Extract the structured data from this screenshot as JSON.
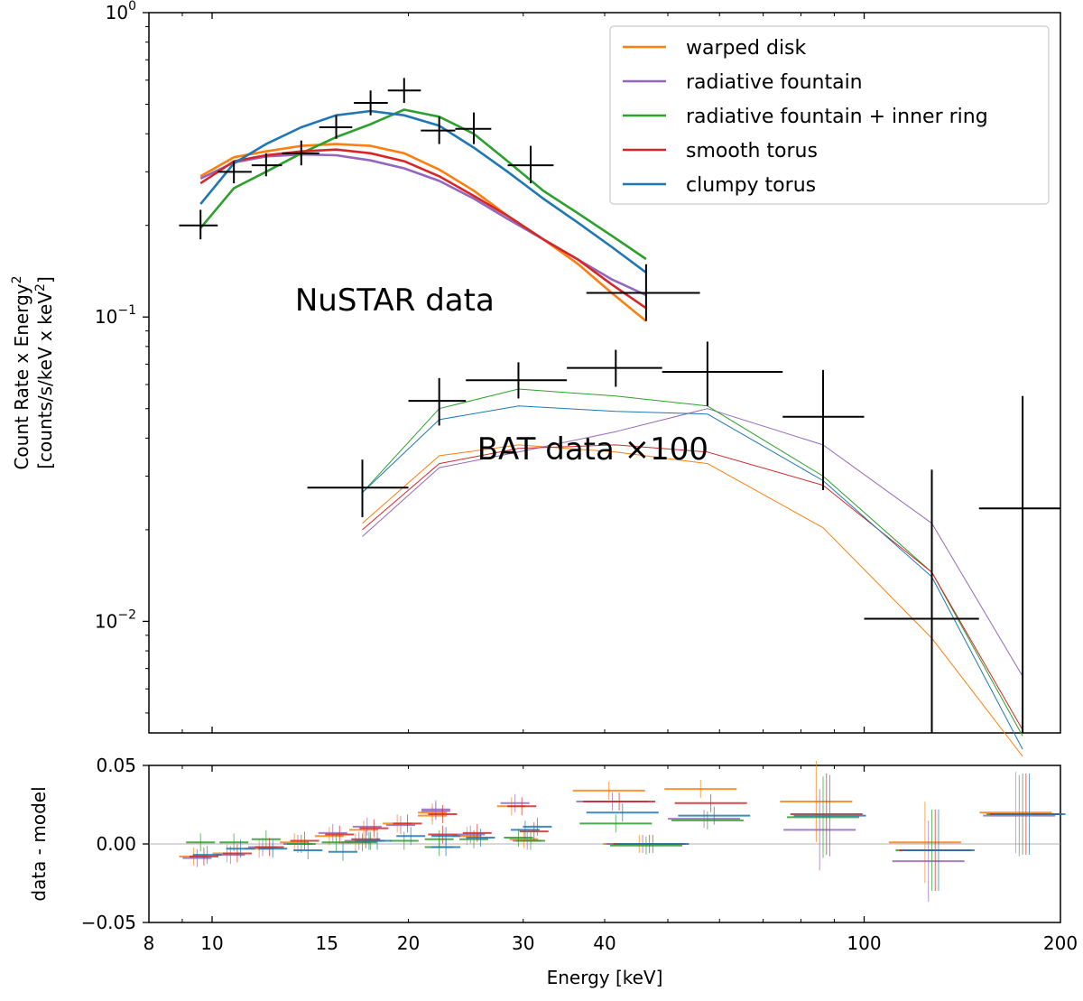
{
  "chart_data": [
    {
      "type": "line",
      "panel": "spectrum",
      "x_scale": "log",
      "y_scale": "log",
      "xlim": [
        8,
        200
      ],
      "ylim": [
        0.0043,
        1.0
      ],
      "xlabel": "Energy [keV]",
      "ylabel_line1": "Count Rate x Energy",
      "ylabel_line2": "[counts/s/keV x keV",
      "ylabel_sup": "2",
      "ytick_base": "10",
      "yticks": [
        {
          "value": 1.0,
          "exp": "0"
        },
        {
          "value": 0.1,
          "exp": "−1"
        },
        {
          "value": 0.01,
          "exp": "−2"
        }
      ],
      "legend_position": "top-right",
      "annotations": [
        {
          "text": "NuSTAR data",
          "x": 13.4,
          "y": 0.105
        },
        {
          "text": "BAT data ×100",
          "x": 25.5,
          "y": 0.034
        }
      ],
      "series": [
        {
          "name": "warped disk",
          "color": "#ff7f0e",
          "nustar": {
            "x": [
              9.6,
              10.8,
              12.1,
              13.7,
              15.5,
              17.5,
              19.7,
              22.3,
              25.2,
              28.4,
              32.2,
              36.3,
              41.0,
              46.3
            ],
            "y": [
              0.29,
              0.335,
              0.35,
              0.365,
              0.37,
              0.365,
              0.345,
              0.305,
              0.26,
              0.215,
              0.18,
              0.15,
              0.12,
              0.097
            ]
          },
          "bat": {
            "x": [
              17.0,
              22.3,
              29.5,
              41.6,
              57.5,
              86.5,
              127.0,
              175.0
            ],
            "y": [
              0.021,
              0.035,
              0.038,
              0.036,
              0.033,
              0.0203,
              0.0088,
              0.0036
            ]
          }
        },
        {
          "name": "radiative fountain",
          "color": "#9467bd",
          "nustar": {
            "x": [
              9.6,
              10.8,
              12.1,
              13.7,
              15.5,
              17.5,
              19.7,
              22.3,
              25.2,
              28.4,
              32.2,
              36.3,
              41.0,
              46.3
            ],
            "y": [
              0.285,
              0.322,
              0.337,
              0.342,
              0.34,
              0.327,
              0.308,
              0.28,
              0.245,
              0.21,
              0.18,
              0.155,
              0.133,
              0.118
            ]
          },
          "bat": {
            "x": [
              17.0,
              22.3,
              29.5,
              41.6,
              57.5,
              86.5,
              127.0,
              175.0
            ],
            "y": [
              0.019,
              0.032,
              0.036,
              0.042,
              0.05,
              0.038,
              0.021,
              0.0066
            ]
          }
        },
        {
          "name": "radiative fountain + inner ring",
          "color": "#2ca02c",
          "nustar": {
            "x": [
              9.6,
              10.8,
              12.1,
              13.7,
              15.5,
              17.5,
              19.7,
              22.3,
              25.2,
              28.4,
              32.2,
              36.3,
              41.0,
              46.3
            ],
            "y": [
              0.196,
              0.265,
              0.3,
              0.345,
              0.39,
              0.43,
              0.48,
              0.455,
              0.4,
              0.325,
              0.26,
              0.22,
              0.185,
              0.155
            ]
          },
          "bat": {
            "x": [
              17.0,
              22.3,
              29.5,
              41.6,
              57.5,
              86.5,
              127.0,
              175.0
            ],
            "y": [
              0.0265,
              0.05,
              0.058,
              0.055,
              0.051,
              0.03,
              0.0145,
              0.0042
            ]
          }
        },
        {
          "name": "smooth torus",
          "color": "#d62728",
          "nustar": {
            "x": [
              9.6,
              10.8,
              12.1,
              13.7,
              15.5,
              17.5,
              19.7,
              22.3,
              25.2,
              28.4,
              32.2,
              36.3,
              41.0,
              46.3
            ],
            "y": [
              0.275,
              0.325,
              0.34,
              0.35,
              0.355,
              0.345,
              0.325,
              0.29,
              0.25,
              0.215,
              0.18,
              0.155,
              0.128,
              0.107
            ]
          },
          "bat": {
            "x": [
              17.0,
              22.3,
              29.5,
              41.6,
              57.5,
              86.5,
              127.0,
              175.0
            ],
            "y": [
              0.02,
              0.033,
              0.037,
              0.038,
              0.036,
              0.028,
              0.0145,
              0.0044
            ]
          }
        },
        {
          "name": "clumpy torus",
          "color": "#1f77b4",
          "nustar": {
            "x": [
              9.6,
              10.8,
              12.1,
              13.7,
              15.5,
              17.5,
              19.7,
              22.3,
              25.2,
              28.4,
              32.2,
              36.3,
              41.0,
              46.3
            ],
            "y": [
              0.235,
              0.32,
              0.37,
              0.42,
              0.46,
              0.475,
              0.46,
              0.425,
              0.36,
              0.3,
              0.245,
              0.205,
              0.17,
              0.14
            ]
          },
          "bat": {
            "x": [
              17.0,
              22.3,
              29.5,
              41.6,
              57.5,
              86.5,
              127.0,
              175.0
            ],
            "y": [
              0.0265,
              0.046,
              0.051,
              0.049,
              0.048,
              0.029,
              0.014,
              0.0038
            ]
          }
        }
      ],
      "data_points": {
        "nustar": [
          {
            "x": 9.6,
            "xerr": [
              8.9,
              10.2
            ],
            "y": 0.2,
            "yerr": [
              0.18,
              0.225
            ]
          },
          {
            "x": 10.8,
            "xerr": [
              10.2,
              11.5
            ],
            "y": 0.3,
            "yerr": [
              0.275,
              0.325
            ]
          },
          {
            "x": 12.1,
            "xerr": [
              11.5,
              12.8
            ],
            "y": 0.315,
            "yerr": [
              0.29,
              0.345
            ]
          },
          {
            "x": 13.7,
            "xerr": [
              12.8,
              14.6
            ],
            "y": 0.345,
            "yerr": [
              0.315,
              0.38
            ]
          },
          {
            "x": 15.5,
            "xerr": [
              14.6,
              16.4
            ],
            "y": 0.42,
            "yerr": [
              0.385,
              0.46
            ]
          },
          {
            "x": 17.5,
            "xerr": [
              16.5,
              18.6
            ],
            "y": 0.505,
            "yerr": [
              0.46,
              0.555
            ]
          },
          {
            "x": 19.7,
            "xerr": [
              18.6,
              20.9
            ],
            "y": 0.555,
            "yerr": [
              0.505,
              0.61
            ]
          },
          {
            "x": 22.3,
            "xerr": [
              20.9,
              23.6
            ],
            "y": 0.41,
            "yerr": [
              0.37,
              0.455
            ]
          },
          {
            "x": 25.2,
            "xerr": [
              23.6,
              26.8
            ],
            "y": 0.415,
            "yerr": [
              0.37,
              0.47
            ]
          },
          {
            "x": 30.8,
            "xerr": [
              28.4,
              33.4
            ],
            "y": 0.315,
            "yerr": [
              0.275,
              0.365
            ]
          },
          {
            "x": 46.3,
            "xerr": [
              37.5,
              56.0
            ],
            "y": 0.12,
            "yerr": [
              0.097,
              0.149
            ]
          }
        ],
        "bat": [
          {
            "x": 17.0,
            "xerr": [
              14.0,
              20.0
            ],
            "y": 0.0275,
            "yerr": [
              0.022,
              0.034
            ]
          },
          {
            "x": 22.3,
            "xerr": [
              20.0,
              24.5
            ],
            "y": 0.053,
            "yerr": [
              0.044,
              0.063
            ]
          },
          {
            "x": 29.5,
            "xerr": [
              24.5,
              35.0
            ],
            "y": 0.062,
            "yerr": [
              0.054,
              0.071
            ]
          },
          {
            "x": 41.6,
            "xerr": [
              35.0,
              49.0
            ],
            "y": 0.068,
            "yerr": [
              0.059,
              0.078
            ]
          },
          {
            "x": 57.5,
            "xerr": [
              49.0,
              75.0
            ],
            "y": 0.066,
            "yerr": [
              0.051,
              0.083
            ]
          },
          {
            "x": 86.5,
            "xerr": [
              75.0,
              100.0
            ],
            "y": 0.047,
            "yerr": [
              0.027,
              0.067
            ]
          },
          {
            "x": 127.0,
            "xerr": [
              100.0,
              150.0
            ],
            "y": 0.0102,
            "yerr": [
              0.0043,
              0.0315
            ]
          },
          {
            "x": 175.0,
            "xerr": [
              150.0,
              200.0
            ],
            "y": 0.0235,
            "yerr": [
              0.0043,
              0.055
            ]
          }
        ]
      }
    },
    {
      "type": "scatter",
      "panel": "residuals",
      "x_scale": "log",
      "xlim": [
        8,
        200
      ],
      "ylim": [
        -0.05,
        0.05
      ],
      "ylabel": "data - model",
      "yticks": [
        {
          "value": 0.05,
          "label": "0.05"
        },
        {
          "value": 0.0,
          "label": "0.00"
        },
        {
          "value": -0.05,
          "label": "−0.05"
        }
      ],
      "xticks": [
        {
          "value": 8,
          "label": "8"
        },
        {
          "value": 10,
          "label": "10"
        },
        {
          "value": 15,
          "label": "15"
        },
        {
          "value": 20,
          "label": "20"
        },
        {
          "value": 30,
          "label": "30"
        },
        {
          "value": 40,
          "label": "40"
        },
        {
          "value": 100,
          "label": "100"
        },
        {
          "value": 200,
          "label": "200"
        }
      ],
      "series": [
        {
          "name": "warped disk",
          "color": "#ff7f0e",
          "points": [
            [
              9.6,
              -0.008
            ],
            [
              10.8,
              -0.006
            ],
            [
              12.1,
              -0.003
            ],
            [
              13.7,
              0.001
            ],
            [
              15.5,
              0.005
            ],
            [
              17.5,
              0.009
            ],
            [
              19.7,
              0.013
            ],
            [
              22.3,
              0.02
            ],
            [
              25.2,
              0.005
            ],
            [
              30.8,
              0.003
            ],
            [
              46.3,
              0.0
            ],
            [
              17.0,
              0.001
            ],
            [
              22.3,
              0.018
            ],
            [
              29.5,
              0.024
            ],
            [
              41.6,
              0.034
            ],
            [
              57.5,
              0.035
            ],
            [
              86.5,
              0.027
            ],
            [
              127.0,
              0.001
            ],
            [
              175.0,
              0.02
            ]
          ]
        },
        {
          "name": "radiative fountain",
          "color": "#9467bd",
          "points": [
            [
              9.6,
              -0.009
            ],
            [
              10.8,
              -0.007
            ],
            [
              12.1,
              -0.002
            ],
            [
              13.7,
              0.0
            ],
            [
              15.5,
              0.007
            ],
            [
              17.5,
              0.011
            ],
            [
              19.7,
              0.012
            ],
            [
              22.3,
              0.022
            ],
            [
              25.2,
              0.006
            ],
            [
              30.8,
              0.002
            ],
            [
              46.3,
              0.0
            ],
            [
              17.0,
              0.002
            ],
            [
              22.3,
              0.021
            ],
            [
              29.5,
              0.026
            ],
            [
              41.6,
              0.027
            ],
            [
              57.5,
              0.016
            ],
            [
              86.5,
              0.009
            ],
            [
              127.0,
              -0.011
            ],
            [
              175.0,
              0.018
            ]
          ]
        },
        {
          "name": "radiative fountain + inner ring",
          "color": "#2ca02c",
          "points": [
            [
              9.6,
              0.001
            ],
            [
              10.8,
              0.001
            ],
            [
              12.1,
              0.003
            ],
            [
              13.7,
              0.0
            ],
            [
              15.5,
              0.001
            ],
            [
              17.5,
              0.002
            ],
            [
              19.7,
              0.002
            ],
            [
              22.3,
              -0.002
            ],
            [
              25.2,
              0.003
            ],
            [
              30.8,
              0.002
            ],
            [
              46.3,
              -0.001
            ],
            [
              17.0,
              0.001
            ],
            [
              22.3,
              0.003
            ],
            [
              29.5,
              0.004
            ],
            [
              41.6,
              0.013
            ],
            [
              57.5,
              0.015
            ],
            [
              86.5,
              0.017
            ],
            [
              127.0,
              -0.004
            ],
            [
              175.0,
              0.019
            ]
          ]
        },
        {
          "name": "smooth torus",
          "color": "#d62728",
          "points": [
            [
              9.6,
              -0.008
            ],
            [
              10.8,
              -0.006
            ],
            [
              12.1,
              -0.002
            ],
            [
              13.7,
              0.002
            ],
            [
              15.5,
              0.006
            ],
            [
              17.5,
              0.01
            ],
            [
              19.7,
              0.013
            ],
            [
              22.3,
              0.006
            ],
            [
              25.2,
              0.007
            ],
            [
              30.8,
              0.008
            ],
            [
              46.3,
              0.0
            ],
            [
              17.0,
              0.003
            ],
            [
              22.3,
              0.019
            ],
            [
              29.5,
              0.024
            ],
            [
              41.6,
              0.027
            ],
            [
              57.5,
              0.026
            ],
            [
              86.5,
              0.019
            ],
            [
              127.0,
              -0.004
            ],
            [
              175.0,
              0.019
            ]
          ]
        },
        {
          "name": "clumpy torus",
          "color": "#1f77b4",
          "points": [
            [
              9.6,
              -0.007
            ],
            [
              10.8,
              -0.003
            ],
            [
              12.1,
              -0.003
            ],
            [
              13.7,
              -0.004
            ],
            [
              15.5,
              -0.005
            ],
            [
              17.5,
              0.002
            ],
            [
              19.7,
              0.005
            ],
            [
              22.3,
              -0.002
            ],
            [
              25.2,
              0.004
            ],
            [
              30.8,
              0.011
            ],
            [
              46.3,
              0.0
            ],
            [
              17.0,
              0.002
            ],
            [
              22.3,
              0.005
            ],
            [
              29.5,
              0.009
            ],
            [
              41.6,
              0.02
            ],
            [
              57.5,
              0.018
            ],
            [
              86.5,
              0.018
            ],
            [
              127.0,
              -0.004
            ],
            [
              175.0,
              0.019
            ]
          ]
        }
      ]
    }
  ]
}
